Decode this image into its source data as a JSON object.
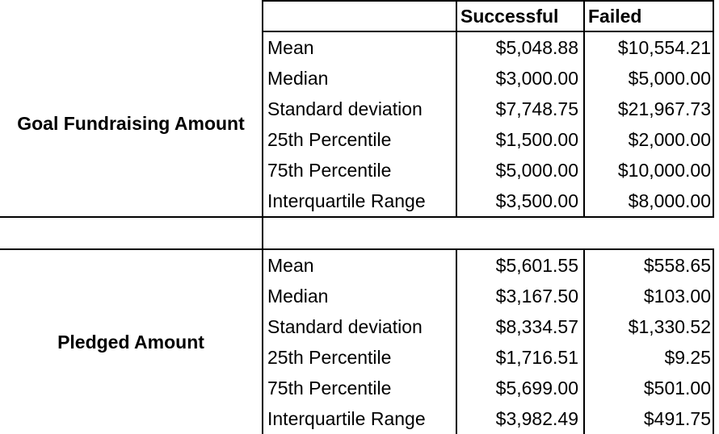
{
  "header": {
    "successful": "Successful",
    "failed": "Failed"
  },
  "groups": [
    {
      "label": "Goal Fundraising Amount",
      "rows": [
        {
          "stat": "Mean",
          "successful": "$5,048.88",
          "failed": "$10,554.21"
        },
        {
          "stat": "Median",
          "successful": "$3,000.00",
          "failed": "$5,000.00"
        },
        {
          "stat": "Standard deviation",
          "successful": "$7,748.75",
          "failed": "$21,967.73"
        },
        {
          "stat": "25th Percentile",
          "successful": "$1,500.00",
          "failed": "$2,000.00"
        },
        {
          "stat": "75th Percentile",
          "successful": "$5,000.00",
          "failed": "$10,000.00"
        },
        {
          "stat": "Interquartile Range",
          "successful": "$3,500.00",
          "failed": "$8,000.00"
        }
      ]
    },
    {
      "label": "Pledged Amount",
      "rows": [
        {
          "stat": "Mean",
          "successful": "$5,601.55",
          "failed": "$558.65"
        },
        {
          "stat": "Median",
          "successful": "$3,167.50",
          "failed": "$103.00"
        },
        {
          "stat": "Standard deviation",
          "successful": "$8,334.57",
          "failed": "$1,330.52"
        },
        {
          "stat": "25th Percentile",
          "successful": "$1,716.51",
          "failed": "$9.25"
        },
        {
          "stat": "75th Percentile",
          "successful": "$5,699.00",
          "failed": "$501.00"
        },
        {
          "stat": "Interquartile Range",
          "successful": "$3,982.49",
          "failed": "$491.75"
        }
      ]
    }
  ]
}
